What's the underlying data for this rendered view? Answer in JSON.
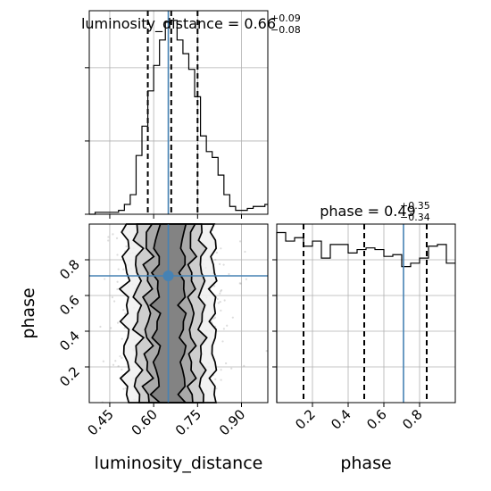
{
  "chart_data": {
    "type": "corner",
    "parameters": [
      "luminosity_distance",
      "phase"
    ],
    "truths": {
      "luminosity_distance": 0.65,
      "phase": 0.71
    },
    "panels": [
      {
        "id": "hist_luminosity_distance",
        "type": "histogram",
        "parameter": "luminosity_distance",
        "title": {
          "prefix": "luminosity_distance = 0.66",
          "sup": "+0.09",
          "sub": "−0.08"
        },
        "xlim": [
          0.38,
          0.99
        ],
        "quantiles": [
          0.58,
          0.66,
          0.75
        ],
        "truth": 0.65,
        "bins": [
          0.38,
          0.4,
          0.42,
          0.44,
          0.46,
          0.48,
          0.5,
          0.52,
          0.54,
          0.56,
          0.58,
          0.6,
          0.62,
          0.64,
          0.66,
          0.68,
          0.7,
          0.72,
          0.74,
          0.76,
          0.78,
          0.8,
          0.82,
          0.84,
          0.86,
          0.88,
          0.9,
          0.92,
          0.94,
          0.96,
          0.98,
          1.0
        ],
        "counts": [
          0,
          1,
          1,
          1,
          1,
          2,
          5,
          10,
          30,
          45,
          63,
          76,
          89,
          98,
          99,
          89,
          82,
          74,
          60,
          40,
          32,
          29,
          20,
          10,
          4,
          2,
          2,
          3,
          4,
          4,
          5
        ],
        "x_tick_positions": [
          0.45,
          0.6,
          0.75,
          0.9
        ],
        "y_tick_fraction": [
          0.0,
          0.36,
          0.72
        ]
      },
      {
        "id": "hist_phase",
        "type": "histogram",
        "parameter": "phase",
        "title": {
          "prefix": "phase = 0.49",
          "sup": "+0.35",
          "sub": "−0.34"
        },
        "xlim": [
          0.0,
          1.0
        ],
        "quantiles": [
          0.15,
          0.49,
          0.84
        ],
        "truth": 0.71,
        "bins": [
          0.0,
          0.05,
          0.1,
          0.15,
          0.2,
          0.25,
          0.3,
          0.35,
          0.4,
          0.45,
          0.5,
          0.55,
          0.6,
          0.65,
          0.7,
          0.75,
          0.8,
          0.85,
          0.9,
          0.95,
          1.0
        ],
        "counts": [
          100,
          95,
          97,
          92,
          95,
          85,
          93,
          93,
          88,
          90,
          91,
          90,
          86,
          87,
          80,
          82,
          85,
          92,
          93,
          82
        ],
        "x_tick_positions": [
          0.2,
          0.4,
          0.6,
          0.8
        ],
        "x_tick_labels": [
          "0.2",
          "0.4",
          "0.6",
          "0.8"
        ]
      },
      {
        "id": "density_2d",
        "type": "contour",
        "x": "luminosity_distance",
        "y": "phase",
        "xlim": [
          0.38,
          0.99
        ],
        "ylim": [
          0.0,
          1.0
        ],
        "x_tick_positions": [
          0.45,
          0.6,
          0.75,
          0.9
        ],
        "x_tick_labels": [
          "0.45",
          "0.60",
          "0.75",
          "0.90"
        ],
        "y_tick_positions": [
          0.2,
          0.4,
          0.6,
          0.8
        ],
        "y_tick_labels": [
          "0.2",
          "0.4",
          "0.6",
          "0.8"
        ],
        "contour_half_widths": [
          0.15,
          0.11,
          0.075,
          0.045
        ],
        "contour_fills": [
          "#f0f0f0",
          "#c8c8c8",
          "#a2a2a2",
          "#7c7c7c"
        ],
        "density_center": 0.655,
        "density_spread": 0.085
      }
    ],
    "xlabel": "luminosity_distance",
    "ylabel": "phase",
    "xlabel_right": "phase",
    "truth_color": "#4682b4",
    "grid": true
  }
}
